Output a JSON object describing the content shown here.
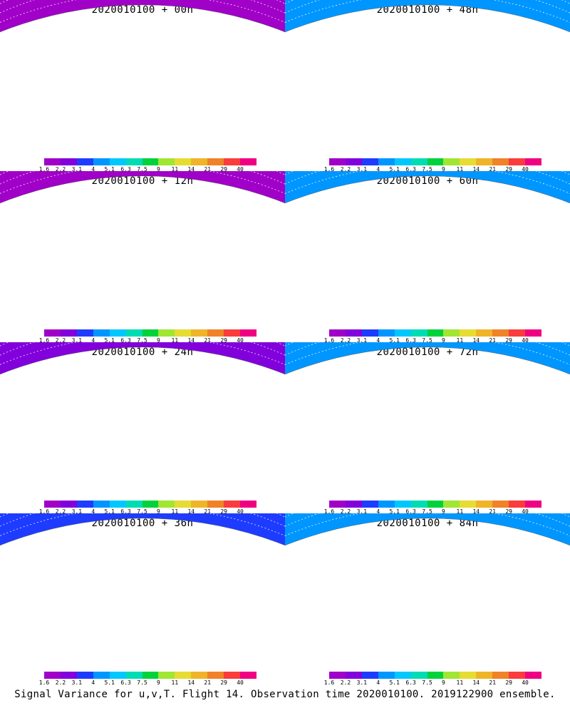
{
  "caption": "Signal Variance for u,v,T. Flight 14. Observation time 2020010100. 2019122900 ensemble.",
  "colorbar": {
    "labels": [
      "1.6",
      "2.2",
      "3.1",
      "4",
      "5.1",
      "6.3",
      "7.5",
      "9",
      "11",
      "14",
      "21",
      "29",
      "40"
    ],
    "colors": [
      "#a000c8",
      "#8200dc",
      "#1e3cff",
      "#0096ff",
      "#00c8ff",
      "#00dcb4",
      "#00d23c",
      "#a0e632",
      "#e6dc32",
      "#f0b428",
      "#f08228",
      "#fa3c3c",
      "#f00082"
    ]
  },
  "panels": [
    {
      "title": "2020010100 + 00h",
      "level": 0
    },
    {
      "title": "2020010100 + 48h",
      "level": 4
    },
    {
      "title": "2020010100 + 12h",
      "level": 1
    },
    {
      "title": "2020010100 + 60h",
      "level": 5
    },
    {
      "title": "2020010100 + 24h",
      "level": 2
    },
    {
      "title": "2020010100 + 72h",
      "level": 6
    },
    {
      "title": "2020010100 + 36h",
      "level": 3
    },
    {
      "title": "2020010100 + 84h",
      "level": 7
    }
  ]
}
